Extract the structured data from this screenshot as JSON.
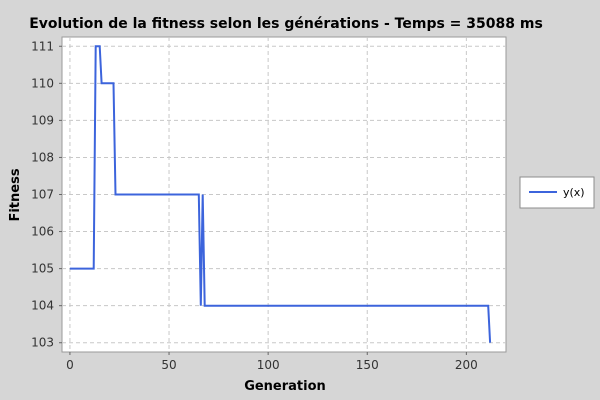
{
  "colors": {
    "background": "#d6d6d6",
    "plot_background": "#ffffff",
    "grid": "#c8c8c8",
    "series_line": "#3c64dc"
  },
  "chart_data": {
    "type": "line",
    "title": "Evolution de la fitness selon les générations - Temps = 35088 ms",
    "xlabel": "Generation",
    "ylabel": "Fitness",
    "xlim": [
      -4,
      220
    ],
    "ylim": [
      102.75,
      111.25
    ],
    "x_ticks": [
      0,
      50,
      100,
      150,
      200
    ],
    "y_ticks": [
      103,
      104,
      105,
      106,
      107,
      108,
      109,
      110,
      111
    ],
    "grid": true,
    "legend_position": "right",
    "series": [
      {
        "name": "y(x)",
        "x": [
          0,
          12,
          13,
          15,
          16,
          22,
          23,
          24,
          65,
          66,
          67,
          68,
          211,
          212
        ],
        "y": [
          105,
          105,
          111,
          111,
          110,
          110,
          107,
          107,
          107,
          104,
          107,
          104,
          104,
          103
        ]
      }
    ]
  }
}
